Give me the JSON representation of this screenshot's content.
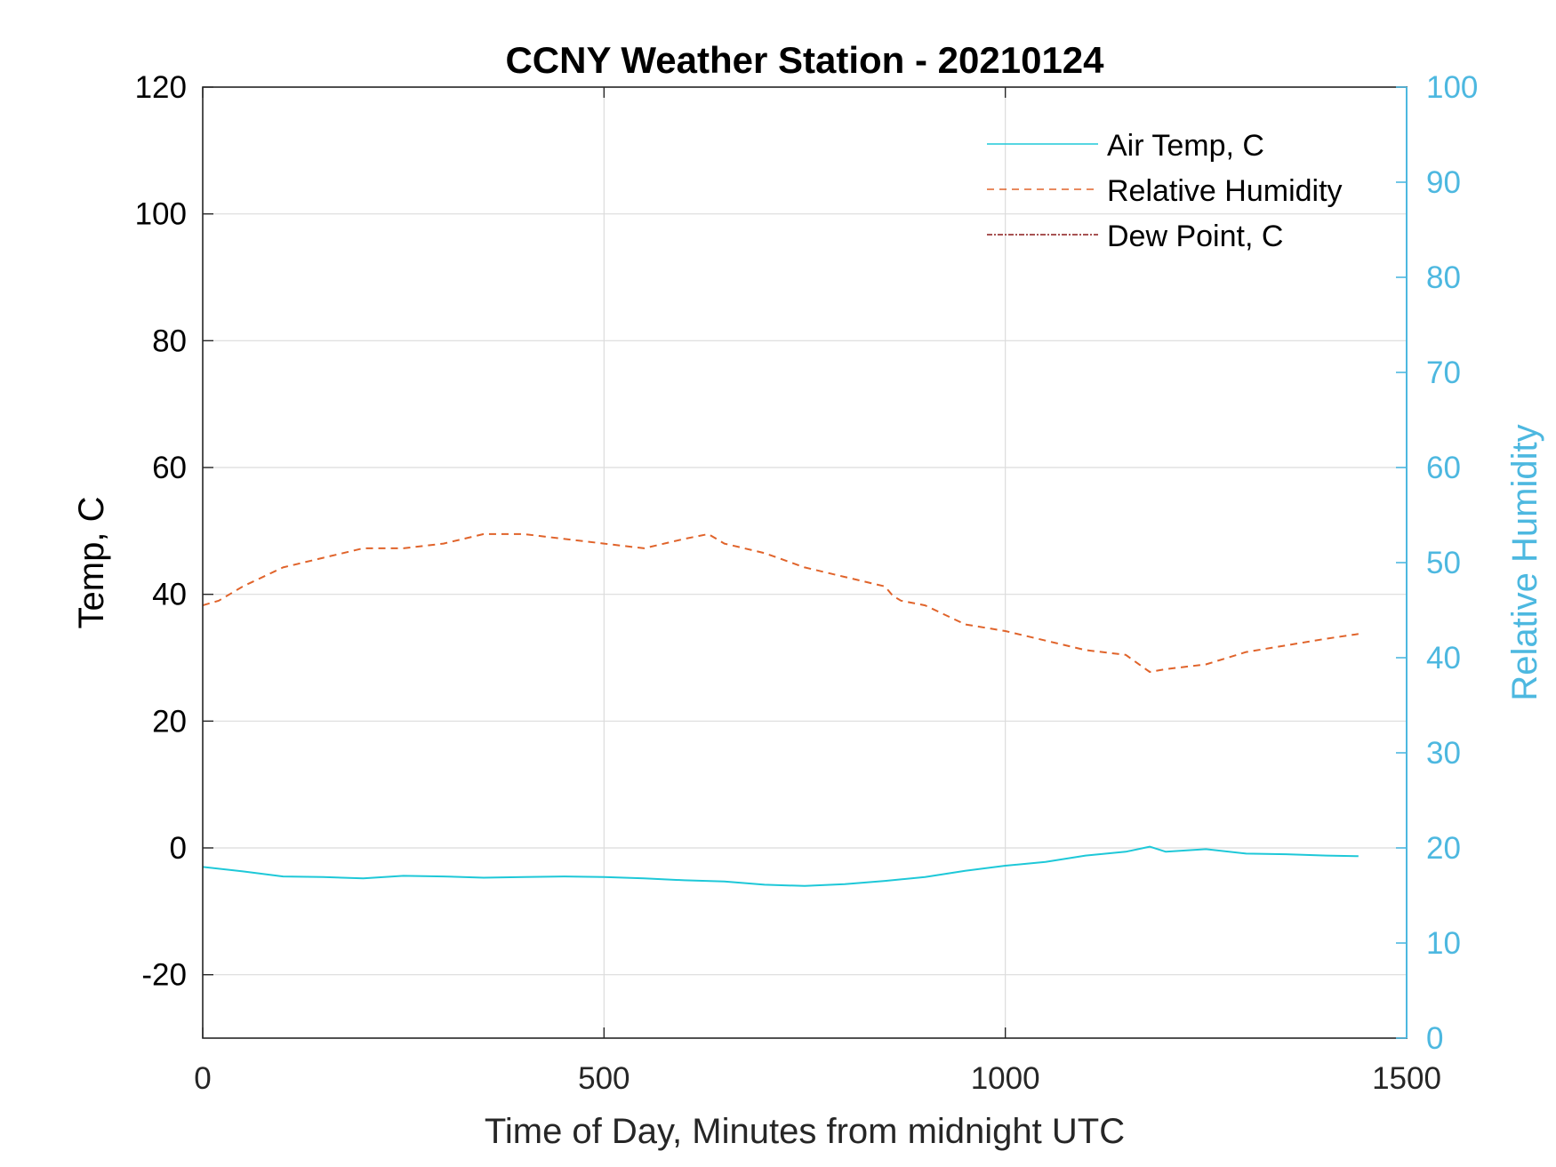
{
  "chart_data": {
    "type": "line",
    "title": "CCNY Weather Station - 20210124",
    "xlabel": "Time of Day, Minutes from midnight UTC",
    "ylabel_left": "Temp, C",
    "ylabel_right": "Relative Humidity",
    "xlim": [
      0,
      1500
    ],
    "ylim_left": [
      -30,
      120
    ],
    "ylim_right": [
      0,
      100
    ],
    "xticks": [
      0,
      500,
      1000,
      1500
    ],
    "yticks_left": [
      -20,
      0,
      20,
      40,
      60,
      80,
      100,
      120
    ],
    "yticks_right": [
      0,
      10,
      20,
      30,
      40,
      50,
      60,
      70,
      80,
      90,
      100
    ],
    "grid": true,
    "legend_position": "top-right",
    "colors": {
      "air_temp": "#1ec8d8",
      "humidity": "#e0632a",
      "dew_point": "#8b1a1a",
      "right_axis": "#4db8e0"
    },
    "series": [
      {
        "name": "Air Temp, C",
        "axis": "left",
        "style": "solid",
        "x": [
          0,
          50,
          100,
          150,
          200,
          250,
          300,
          350,
          400,
          450,
          500,
          550,
          600,
          650,
          700,
          750,
          800,
          850,
          900,
          950,
          1000,
          1050,
          1100,
          1150,
          1180,
          1200,
          1250,
          1300,
          1350,
          1400,
          1440
        ],
        "y": [
          -3,
          -3.7,
          -4.5,
          -4.6,
          -4.8,
          -4.4,
          -4.5,
          -4.7,
          -4.6,
          -4.5,
          -4.6,
          -4.8,
          -5.1,
          -5.3,
          -5.8,
          -6.0,
          -5.7,
          -5.2,
          -4.6,
          -3.6,
          -2.8,
          -2.2,
          -1.2,
          -0.6,
          0.2,
          -0.6,
          -0.2,
          -0.9,
          -1.0,
          -1.2,
          -1.3
        ]
      },
      {
        "name": "Relative Humidity",
        "axis": "right",
        "style": "dashed",
        "x": [
          0,
          20,
          50,
          100,
          150,
          200,
          250,
          300,
          350,
          400,
          450,
          500,
          550,
          600,
          630,
          650,
          700,
          750,
          800,
          850,
          860,
          870,
          900,
          950,
          1000,
          1050,
          1100,
          1150,
          1180,
          1200,
          1250,
          1300,
          1350,
          1400,
          1440
        ],
        "y": [
          45.5,
          46,
          47.5,
          49.5,
          50.5,
          51.5,
          51.5,
          52,
          53,
          53,
          52.5,
          52,
          51.5,
          52.5,
          53,
          52,
          51,
          49.5,
          48.5,
          47.5,
          46.5,
          46,
          45.5,
          43.5,
          42.8,
          41.8,
          40.8,
          40.3,
          38.5,
          38.8,
          39.3,
          40.6,
          41.3,
          42,
          42.5
        ]
      },
      {
        "name": "Dew Point, C",
        "axis": "left",
        "style": "dash-dot",
        "x": [],
        "y": []
      }
    ]
  }
}
